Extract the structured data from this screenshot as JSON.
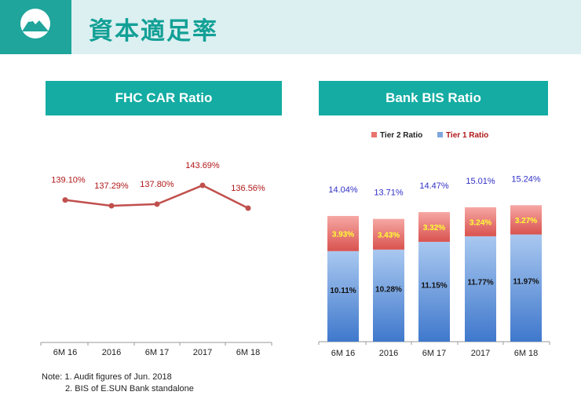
{
  "header": {
    "title": "資本適足率",
    "logo_icon": "mountain-logo-icon"
  },
  "colors": {
    "accent": "#14aca3",
    "line": "#c0504d",
    "line_label": "#b01818",
    "tier1_top": "#a9c8f0",
    "tier1_bottom": "#3f78cc",
    "tier2_top": "#f6a7a4",
    "tier2_bottom": "#d9534f",
    "total_label": "#3030c8",
    "tier2_label": "#ffff33"
  },
  "fhc": {
    "banner": "FHC CAR Ratio"
  },
  "bis": {
    "banner": "Bank BIS Ratio",
    "legend": {
      "tier2": "Tier 2 Ratio",
      "tier1": "Tier 1 Ratio"
    }
  },
  "notes": {
    "line1": "Note: 1. Audit figures of Jun. 2018",
    "line2": "2. BIS of E.SUN Bank standalone"
  },
  "chart_data": [
    {
      "type": "line",
      "title": "FHC CAR Ratio",
      "categories": [
        "6M 16",
        "2016",
        "6M 17",
        "2017",
        "6M 18"
      ],
      "series": [
        {
          "name": "FHC CAR Ratio",
          "values": [
            139.1,
            137.29,
            137.8,
            143.69,
            136.56
          ],
          "labels": [
            "139.10%",
            "137.29%",
            "137.80%",
            "143.69%",
            "136.56%"
          ]
        }
      ],
      "ylim": [
        120,
        150
      ]
    },
    {
      "type": "bar",
      "stacked": true,
      "title": "Bank BIS Ratio",
      "categories": [
        "6M 16",
        "2016",
        "6M 17",
        "2017",
        "6M 18"
      ],
      "series": [
        {
          "name": "Tier 1 Ratio",
          "values": [
            10.11,
            10.28,
            11.15,
            11.77,
            11.97
          ],
          "labels": [
            "10.11%",
            "10.28%",
            "11.15%",
            "11.77%",
            "11.97%"
          ]
        },
        {
          "name": "Tier 2 Ratio",
          "values": [
            3.93,
            3.43,
            3.32,
            3.24,
            3.27
          ],
          "labels": [
            "3.93%",
            "3.43%",
            "3.32%",
            "3.24%",
            "3.27%"
          ]
        }
      ],
      "totals": [
        14.04,
        13.71,
        14.47,
        15.01,
        15.24
      ],
      "total_labels": [
        "14.04%",
        "13.71%",
        "14.47%",
        "15.01%",
        "15.24%"
      ],
      "legend_position": "top",
      "ylim": [
        0,
        20
      ]
    }
  ]
}
